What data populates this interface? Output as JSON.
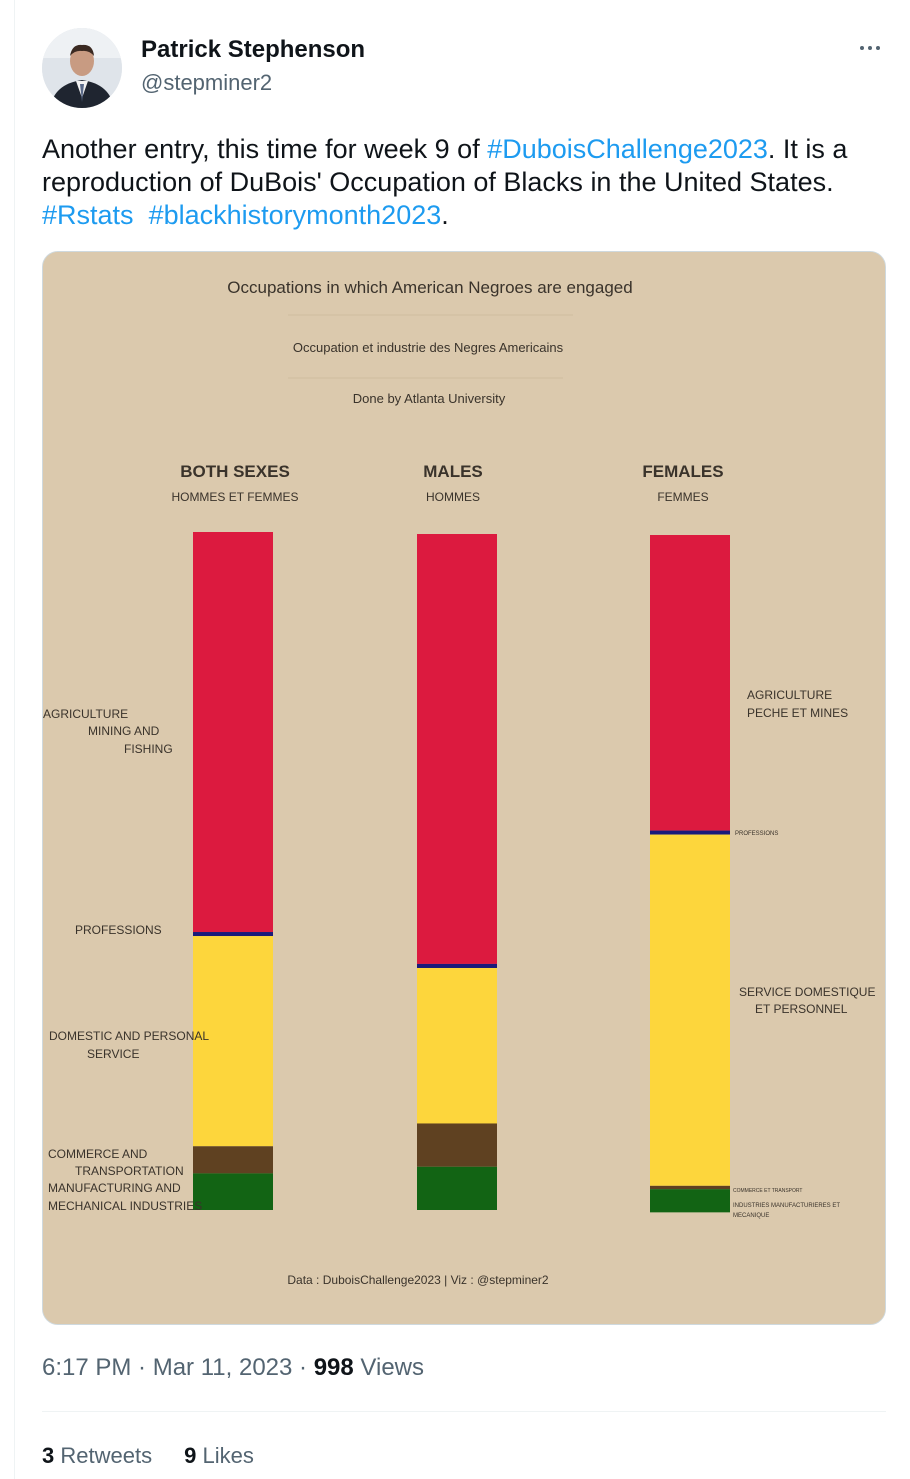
{
  "tweet": {
    "author_name": "Patrick Stephenson",
    "author_handle": "@stepminer2",
    "text_1": "Another entry, this time for week 9 of ",
    "hashtag_1": "#DuboisChallenge2023",
    "text_2": ". It is a reproduction of DuBois' Occupation of Blacks in the United States. ",
    "hashtag_2": "#Rstats",
    "hashtag_3": "#blackhistorymonth2023",
    "text_3": ".",
    "time": "6:17 PM",
    "separator": " · ",
    "date": "Mar 11, 2023",
    "views_count": "998",
    "views_label": "Views",
    "retweets_count": "3",
    "retweets_label": "Retweets",
    "likes_count": "9",
    "likes_label": "Likes"
  },
  "icons": {
    "more": "more-horizontal-icon",
    "avatar": "avatar-photo"
  },
  "colors": {
    "link": "#1d9bf0",
    "chart_background": "#dbc9ad",
    "agriculture": "#dc1a3f",
    "professions": "#1a1a7a",
    "domestic": "#fdd63c",
    "commerce": "#5f4121",
    "manufacturing": "#126414"
  },
  "chart_data": {
    "type": "bar",
    "title": "Occupations in which American Negroes are engaged",
    "subtitle": "Occupation et industrie des Negres Americains",
    "subtitle_2": "Done by Atlanta University",
    "caption": "Data : DuboisChallenge2023  | Viz : @stepminer2",
    "stacked": true,
    "categories": [
      "BOTH SEXES",
      "MALES",
      "FEMALES"
    ],
    "category_subtitles": [
      "HOMMES ET FEMMES",
      "HOMMES",
      "FEMMES"
    ],
    "series": [
      {
        "name": "Agriculture",
        "values": [
          59.0,
          63.6,
          44.6
        ]
      },
      {
        "name": "Professions",
        "values": [
          0.6,
          0.6,
          0.4
        ]
      },
      {
        "name": "Domestic and Personal Service",
        "values": [
          31.0,
          23.0,
          53.0
        ]
      },
      {
        "name": "Commerce and Transportation",
        "values": [
          4.0,
          6.4,
          0.5
        ]
      },
      {
        "name": "Manufacturing and Mechanical Industries",
        "values": [
          5.4,
          6.4,
          3.5
        ]
      }
    ],
    "labels": {
      "both_agri": [
        "AGRICULTURE",
        "MINING AND",
        "FISHING"
      ],
      "both_prof": "PROFESSIONS",
      "both_dom": [
        "DOMESTIC AND PERSONAL",
        "SERVICE"
      ],
      "both_comm": [
        "COMMERCE AND",
        "TRANSPORTATION"
      ],
      "both_manu": [
        "MANUFACTURING AND",
        "MECHANICAL INDUSTRIES"
      ],
      "fem_agri": [
        "AGRICULTURE",
        "PECHE ET MINES"
      ],
      "fem_prof": "PROFESSIONS",
      "fem_dom": [
        "SERVICE DOMESTIQUE",
        "ET PERSONNEL"
      ],
      "fem_comm": "COMMERCE ET TRANSPORT",
      "fem_manu": [
        "INDUSTRIES MANUFACTURIERES ET",
        "MECANIQUE"
      ]
    },
    "ylim": [
      0,
      100
    ],
    "grid": false,
    "legend": "none"
  }
}
